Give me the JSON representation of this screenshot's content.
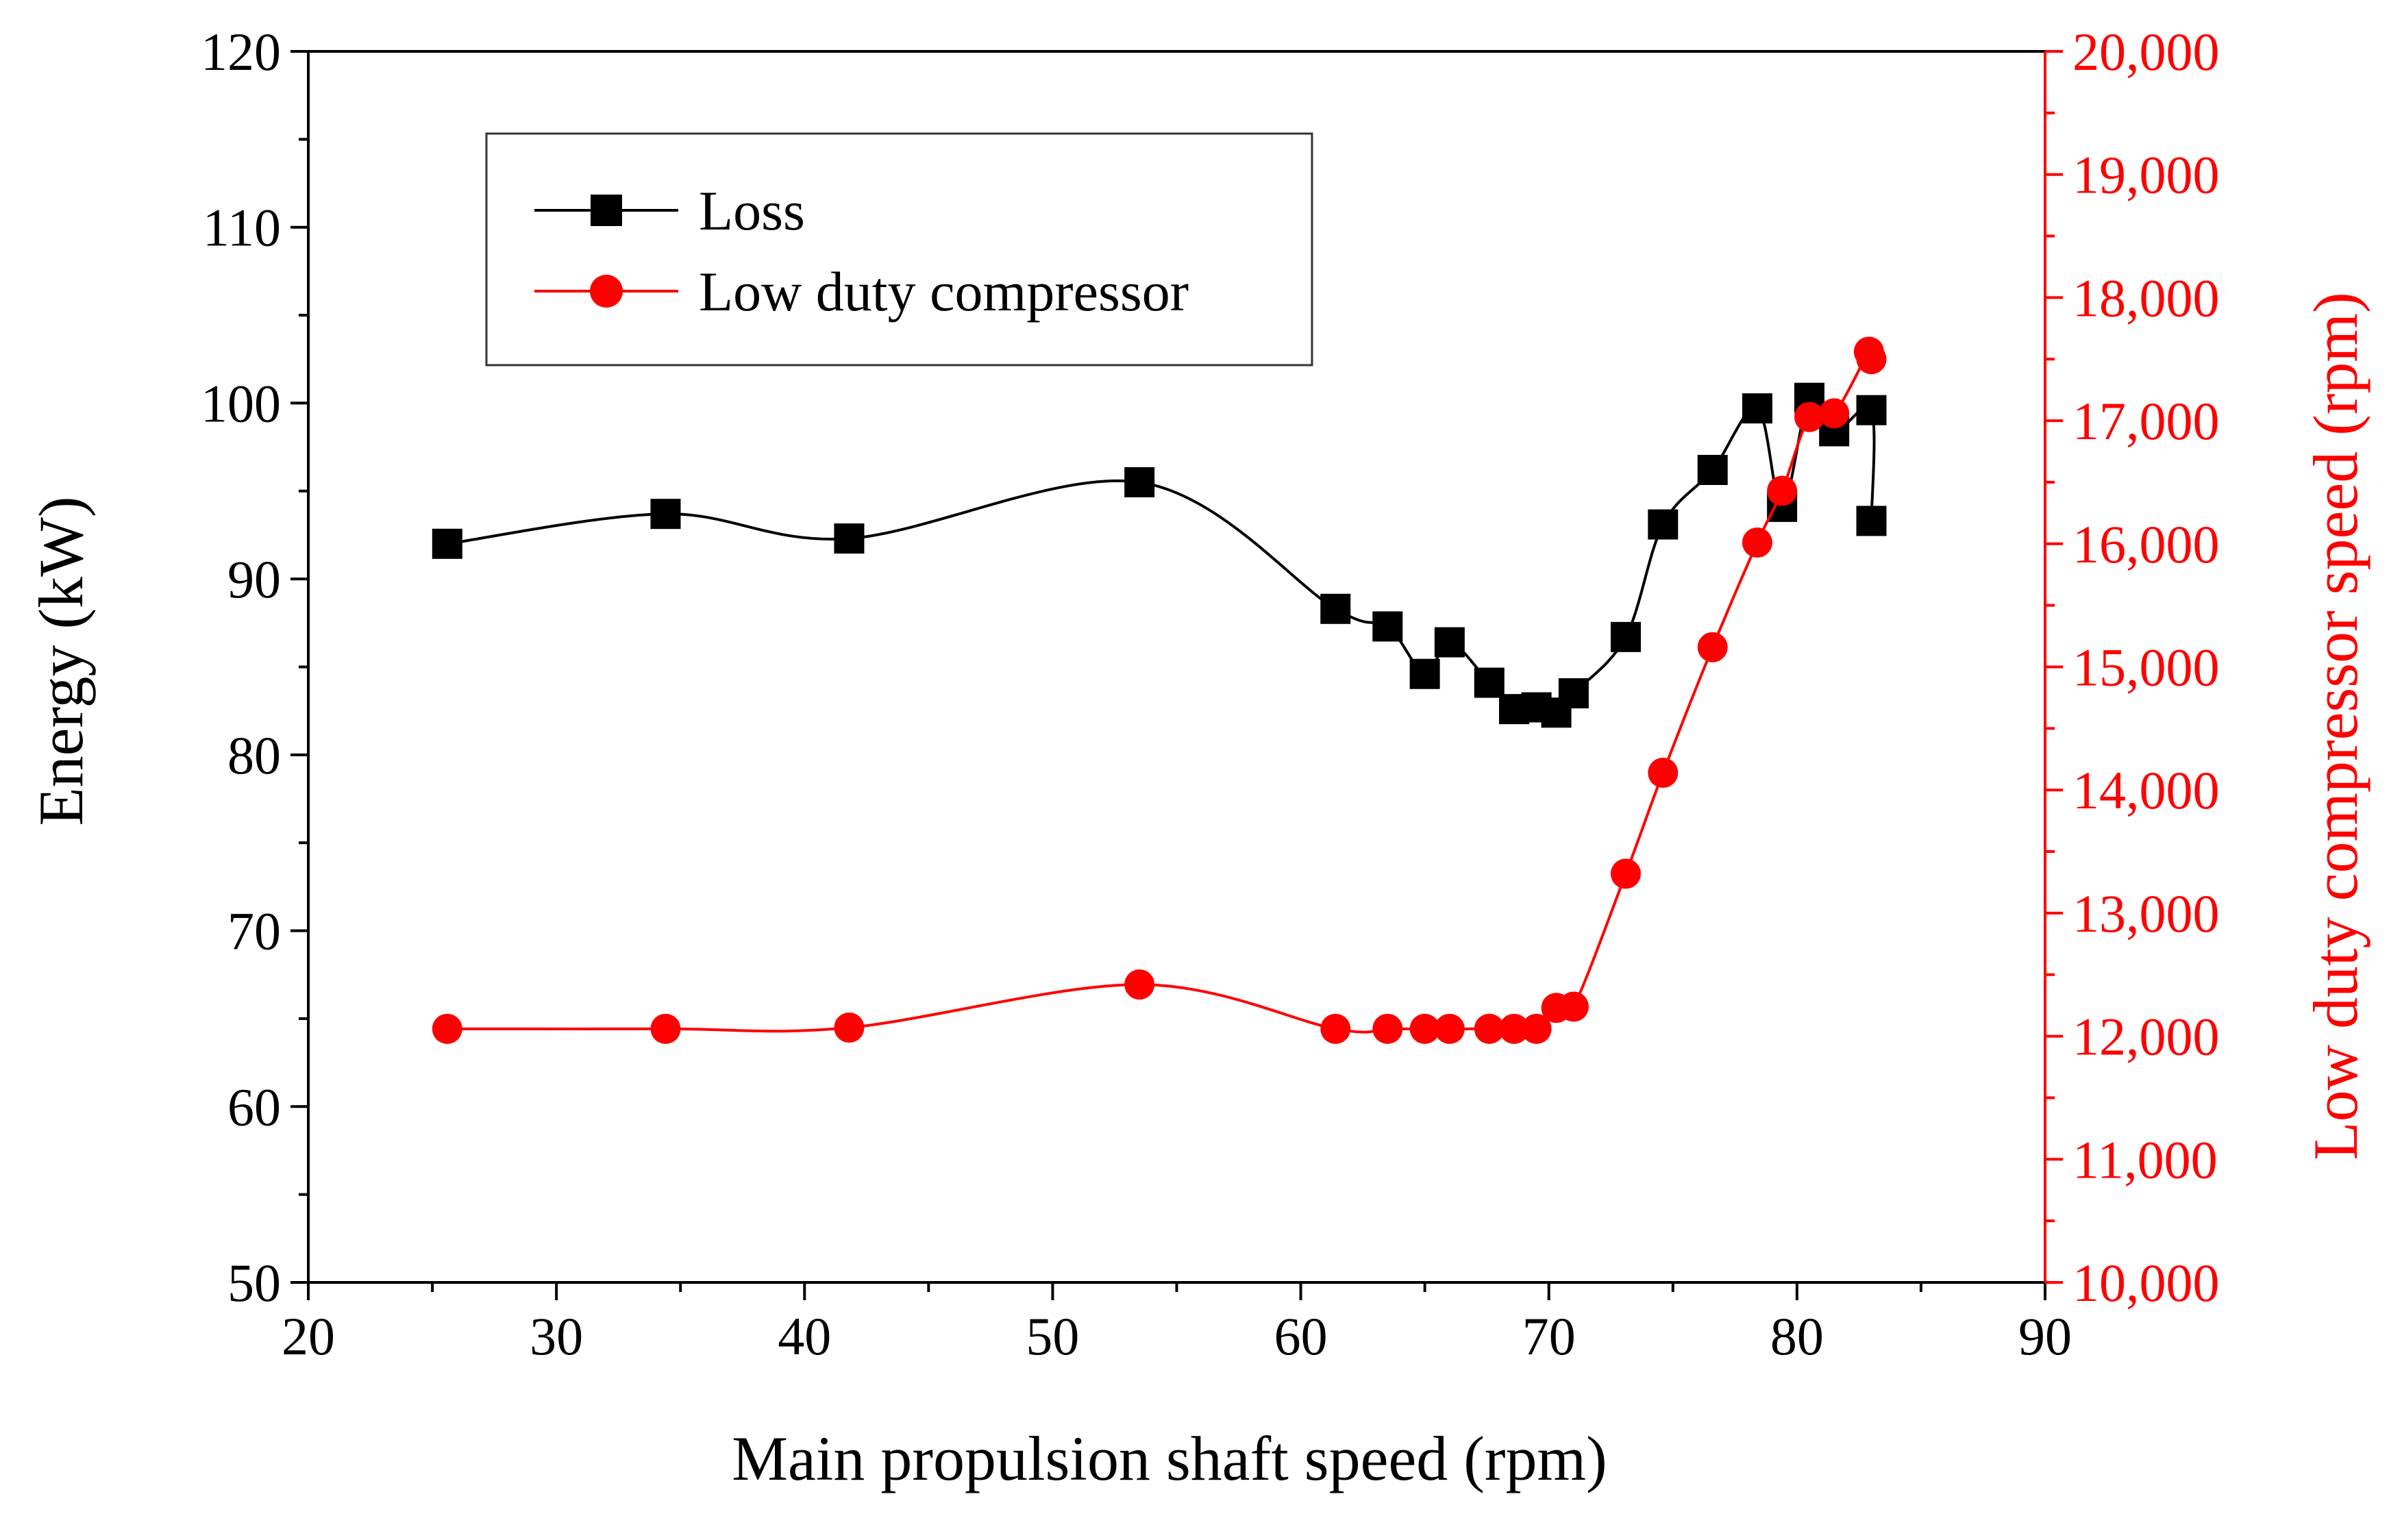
{
  "chart_data": {
    "type": "line",
    "title": "",
    "xlabel": "Main propulsion  shaft speed (rpm)",
    "ylabel": "Energy (kW)",
    "y2label": "Low duty compressor speed (rpm)",
    "xlim": [
      20,
      90
    ],
    "ylim": [
      50,
      120
    ],
    "y2lim": [
      10000,
      20000
    ],
    "xticks": [
      20,
      30,
      40,
      50,
      60,
      70,
      80,
      90
    ],
    "xtick_labels": [
      "20",
      "30",
      "40",
      "50",
      "60",
      "70",
      "80",
      "90"
    ],
    "yticks": [
      50,
      60,
      70,
      80,
      90,
      100,
      110,
      120
    ],
    "ytick_labels": [
      "50",
      "60",
      "70",
      "80",
      "90",
      "100",
      "110",
      "120"
    ],
    "y2ticks": [
      10000,
      11000,
      12000,
      13000,
      14000,
      15000,
      16000,
      17000,
      18000,
      19000,
      20000
    ],
    "y2tick_labels": [
      "10,000",
      "11,000",
      "12,000",
      "13,000",
      "14,000",
      "15,000",
      "16,000",
      "17,000",
      "18,000",
      "19,000",
      "20,000"
    ],
    "legend_position": "top-left",
    "colors": {
      "loss": "#000000",
      "compressor": "#ff0000"
    },
    "series": [
      {
        "name": "Loss",
        "axis": "left",
        "marker": "square",
        "x": [
          25.6,
          34.4,
          41.8,
          53.5,
          61.4,
          63.5,
          65.0,
          66.0,
          67.6,
          68.6,
          69.5,
          70.3,
          71.0,
          73.1,
          74.6,
          76.6,
          78.4,
          79.4,
          80.5,
          81.5,
          83.0,
          83.0
        ],
        "values": [
          92.0,
          93.7,
          92.3,
          95.5,
          88.3,
          87.3,
          84.6,
          86.4,
          84.1,
          82.6,
          82.7,
          82.4,
          83.5,
          86.7,
          93.1,
          96.2,
          99.7,
          94.1,
          100.3,
          98.4,
          99.6,
          93.3
        ]
      },
      {
        "name": "Low duty compressor",
        "axis": "right",
        "marker": "circle",
        "x": [
          25.6,
          34.4,
          41.8,
          53.5,
          61.4,
          63.5,
          65.0,
          66.0,
          67.6,
          68.6,
          69.5,
          70.3,
          71.0,
          73.1,
          74.6,
          76.6,
          78.4,
          79.4,
          80.5,
          81.5,
          82.9,
          83.0
        ],
        "values": [
          12060,
          12060,
          12070,
          12420,
          12060,
          12060,
          12060,
          12060,
          12060,
          12060,
          12060,
          12230,
          12240,
          13320,
          14140,
          15160,
          16010,
          16430,
          17030,
          17060,
          17560,
          17500
        ]
      }
    ]
  }
}
